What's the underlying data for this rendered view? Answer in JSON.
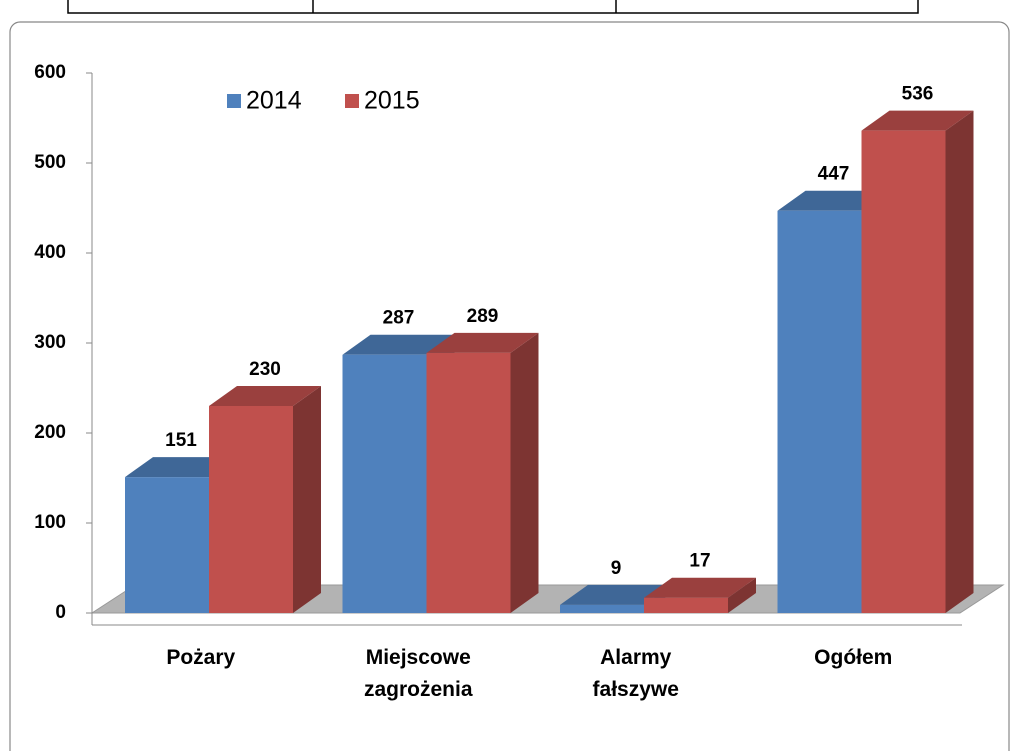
{
  "chart_data": {
    "type": "bar3d",
    "categories": [
      "Pożary",
      "Miejscowe zagrożenia",
      "Alarmy fałszywe",
      "Ogółem"
    ],
    "series": [
      {
        "name": "2014",
        "color": "#4f81bd",
        "values": [
          151,
          287,
          9,
          447
        ]
      },
      {
        "name": "2015",
        "color": "#c0504d",
        "values": [
          230,
          289,
          17,
          536
        ]
      }
    ],
    "ylim": [
      0,
      600
    ],
    "yticks": [
      0,
      100,
      200,
      300,
      400,
      500,
      600
    ],
    "grid": false,
    "legend": "top-left"
  }
}
